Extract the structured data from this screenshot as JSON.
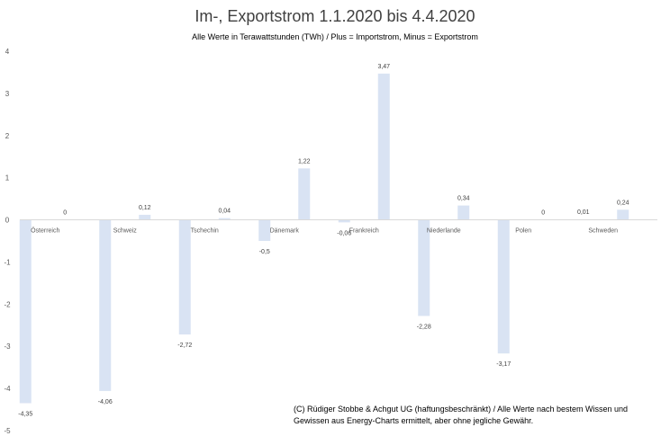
{
  "chart_data": {
    "type": "bar",
    "title": "Im-, Exportstrom 1.1.2020 bis 4.4.2020",
    "subtitle": "Alle Werte in Terawattstunden (TWh) / Plus = Importstrom, Minus = Exportstrom",
    "xlabel": "",
    "ylabel": "",
    "ylim": [
      -5,
      4
    ],
    "yticks": [
      "4",
      "3",
      "2",
      "1",
      "0",
      "-1",
      "-2",
      "-3",
      "-4",
      "-5"
    ],
    "ytick_values": [
      4,
      3,
      2,
      1,
      0,
      -1,
      -2,
      -3,
      -4,
      -5
    ],
    "grid": false,
    "legend": "none",
    "bar_color": "#d9e3f3",
    "categories": [
      "Österreich",
      "Schweiz",
      "Tschechin",
      "Dänemark",
      "Frankreich",
      "Niederlande",
      "Polen",
      "Schweden"
    ],
    "series": [
      {
        "values": [
          -4.35,
          -4.06,
          -2.72,
          -0.5,
          -0.06,
          -2.28,
          -3.17,
          0.01
        ],
        "labels": [
          "-4,35",
          "-4,06",
          "-2,72",
          "-0,5",
          "-0,06",
          "-2,28",
          "-3,17",
          "0,01"
        ]
      },
      {
        "values": [
          0,
          0.12,
          0.04,
          1.22,
          3.47,
          0.34,
          0,
          0.24
        ],
        "labels": [
          "0",
          "0,12",
          "0,04",
          "1,22",
          "3,47",
          "0,34",
          "0",
          "0,24"
        ]
      }
    ]
  },
  "footnote": "(C) Rüdiger Stobbe & Achgut UG (haftungsbeschränkt) / Alle Werte nach bestem Wissen und Gewissen aus Energy-Charts ermittelt, aber ohne jegliche Gewähr."
}
